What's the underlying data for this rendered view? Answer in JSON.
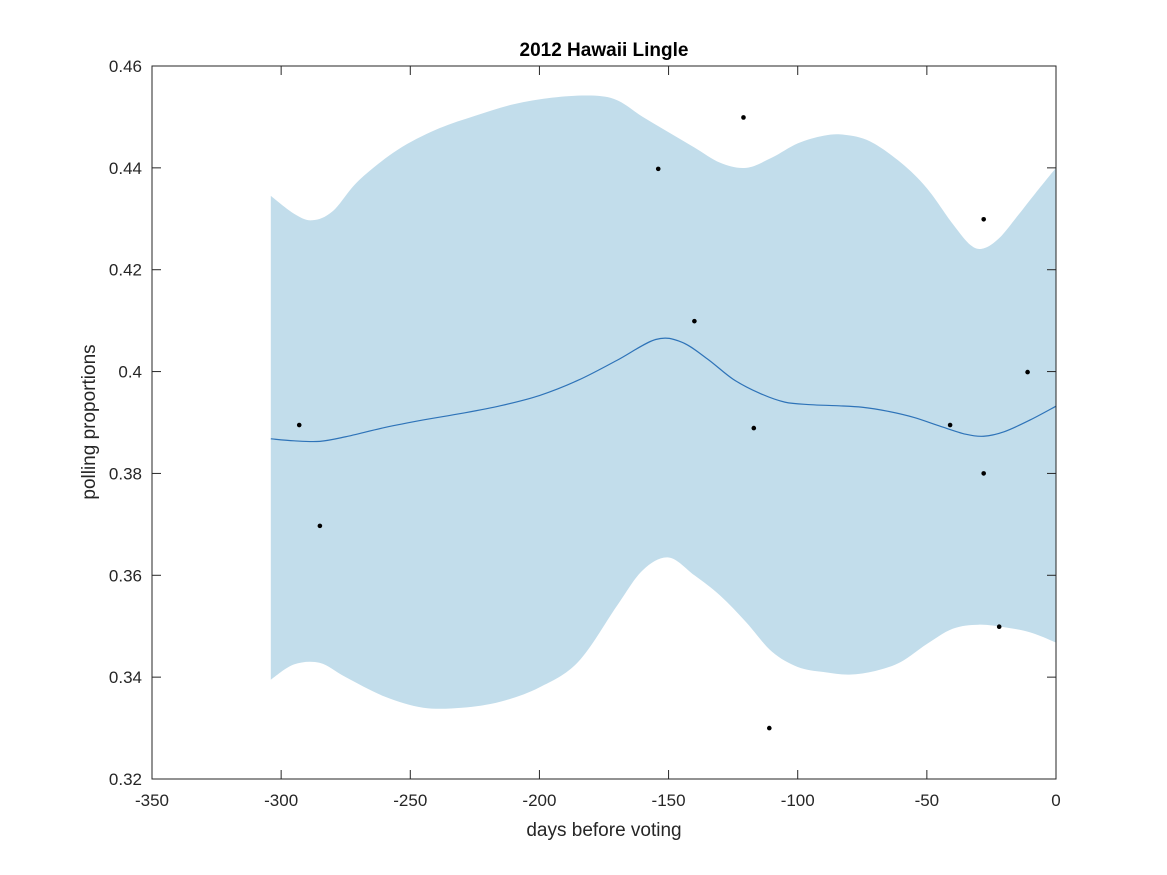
{
  "chart_data": {
    "type": "line",
    "title": "2012 Hawaii Lingle",
    "xlabel": "days before voting",
    "ylabel": "polling proportions",
    "xlim": [
      -350,
      0
    ],
    "ylim": [
      0.32,
      0.46
    ],
    "xticks": [
      -350,
      -300,
      -250,
      -200,
      -150,
      -100,
      -50,
      0
    ],
    "xtick_labels": [
      "-350",
      "-300",
      "-250",
      "-200",
      "-150",
      "-100",
      "-50",
      "0"
    ],
    "yticks": [
      0.32,
      0.34,
      0.36,
      0.38,
      0.4,
      0.42,
      0.44,
      0.46
    ],
    "ytick_labels": [
      "0.32",
      "0.34",
      "0.36",
      "0.38",
      "0.4",
      "0.42",
      "0.44",
      "0.46"
    ],
    "grid": false,
    "colors": {
      "band": "#c2ddeb",
      "line": "#2e73b8",
      "points": "#000000",
      "axis": "#262626"
    },
    "series": [
      {
        "role": "fit",
        "x": [
          -304,
          -295,
          -285,
          -275,
          -260,
          -245,
          -230,
          -215,
          -200,
          -185,
          -170,
          -155,
          -145,
          -135,
          -125,
          -115,
          -105,
          -95,
          -85,
          -75,
          -65,
          -55,
          -45,
          -35,
          -28,
          -20,
          -10,
          0
        ],
        "values": [
          0.3868,
          0.3864,
          0.3863,
          0.3872,
          0.389,
          0.3905,
          0.3918,
          0.3933,
          0.3953,
          0.3983,
          0.4022,
          0.4063,
          0.4058,
          0.4025,
          0.3985,
          0.3958,
          0.394,
          0.3935,
          0.3933,
          0.393,
          0.3922,
          0.391,
          0.3893,
          0.3877,
          0.3873,
          0.3882,
          0.3905,
          0.3932
        ]
      },
      {
        "role": "band_upper",
        "x": [
          -304,
          -295,
          -288,
          -280,
          -270,
          -255,
          -240,
          -225,
          -210,
          -195,
          -180,
          -170,
          -160,
          -150,
          -140,
          -130,
          -120,
          -110,
          -100,
          -90,
          -82,
          -72,
          -60,
          -50,
          -40,
          -33,
          -28,
          -22,
          -15,
          -8,
          0
        ],
        "values": [
          0.4345,
          0.431,
          0.4297,
          0.4315,
          0.4375,
          0.4435,
          0.4475,
          0.4502,
          0.4525,
          0.4538,
          0.4542,
          0.4533,
          0.45,
          0.447,
          0.444,
          0.441,
          0.44,
          0.442,
          0.4448,
          0.4463,
          0.4465,
          0.4452,
          0.441,
          0.436,
          0.429,
          0.4248,
          0.4242,
          0.4262,
          0.4305,
          0.435,
          0.44
        ]
      },
      {
        "role": "band_lower",
        "x": [
          -304,
          -295,
          -285,
          -275,
          -260,
          -245,
          -230,
          -215,
          -200,
          -185,
          -170,
          -160,
          -150,
          -140,
          -130,
          -120,
          -110,
          -100,
          -90,
          -80,
          -70,
          -60,
          -50,
          -40,
          -30,
          -20,
          -10,
          0
        ],
        "values": [
          0.3395,
          0.3425,
          0.3428,
          0.34,
          0.3362,
          0.334,
          0.334,
          0.3352,
          0.338,
          0.343,
          0.354,
          0.361,
          0.3635,
          0.36,
          0.356,
          0.3508,
          0.345,
          0.342,
          0.341,
          0.3405,
          0.3412,
          0.343,
          0.3465,
          0.3495,
          0.3503,
          0.3498,
          0.3488,
          0.3468
        ]
      },
      {
        "role": "points",
        "x": [
          -293,
          -285,
          -154,
          -140,
          -121,
          -117,
          -111,
          -41,
          -28,
          -28,
          -22,
          -11
        ],
        "values": [
          0.3895,
          0.3697,
          0.4398,
          0.4099,
          0.4499,
          0.3889,
          0.33,
          0.3895,
          0.4299,
          0.38,
          0.3499,
          0.3999
        ]
      }
    ]
  }
}
